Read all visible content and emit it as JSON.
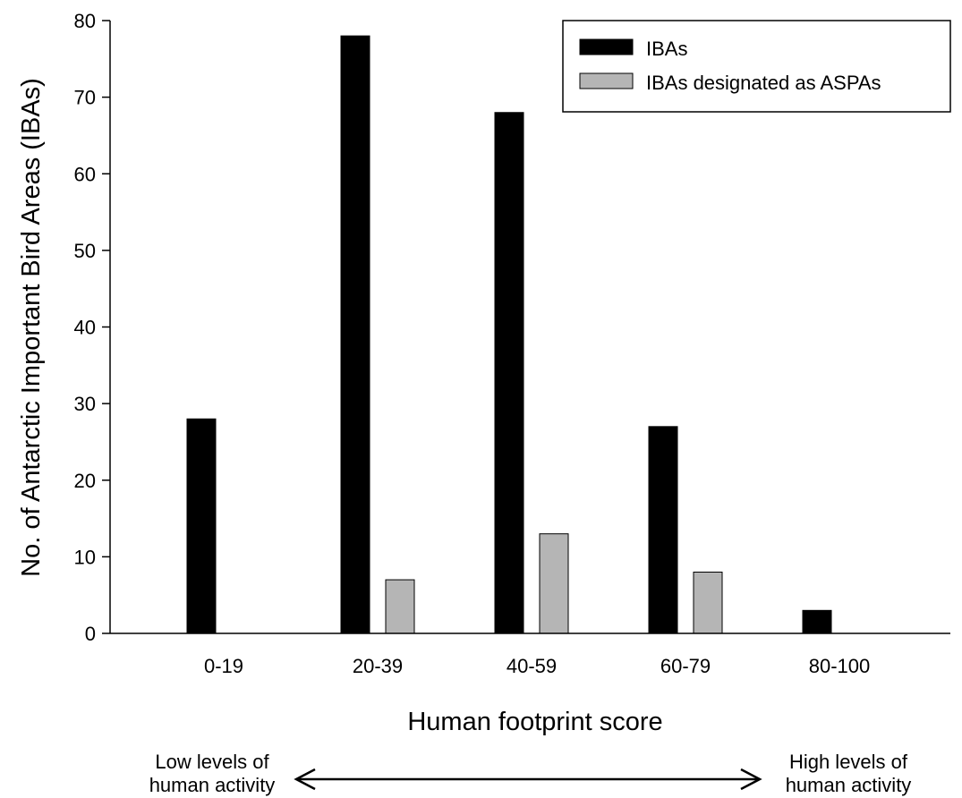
{
  "chart_data": {
    "type": "bar",
    "categories": [
      "0-19",
      "20-39",
      "40-59",
      "60-79",
      "80-100"
    ],
    "series": [
      {
        "name": "IBAs",
        "values": [
          28,
          78,
          68,
          27,
          3
        ],
        "color": "#000000"
      },
      {
        "name": "IBAs designated as ASPAs",
        "values": [
          0,
          7,
          13,
          8,
          0
        ],
        "color": "#b5b5b5"
      }
    ],
    "xlabel": "Human footprint score",
    "ylabel": "No. of Antarctic Important Bird Areas (IBAs)",
    "ylim": [
      0,
      80
    ],
    "yticks": [
      0,
      10,
      20,
      30,
      40,
      50,
      60,
      70,
      80
    ],
    "grid": false,
    "legend_position": "top-right",
    "annotations": {
      "low_line1": "Low levels of",
      "low_line2": "human activity",
      "high_line1": "High levels of",
      "high_line2": "human activity"
    }
  }
}
